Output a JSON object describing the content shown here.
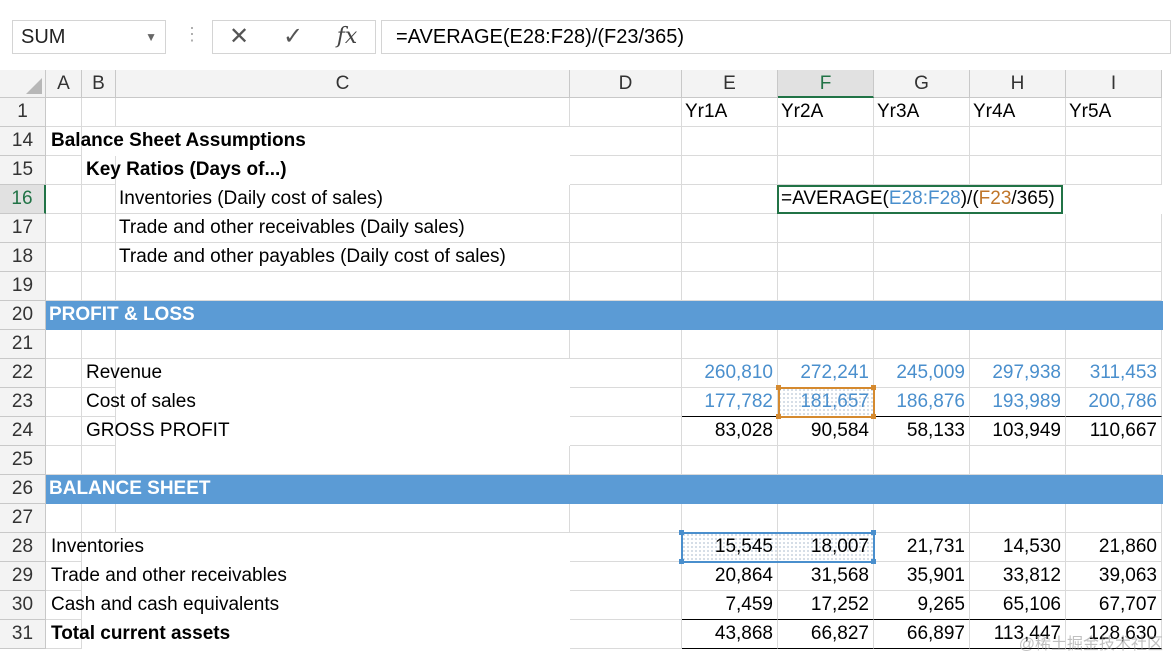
{
  "formula_bar": {
    "name_box": "SUM",
    "cancel_icon": "close-icon",
    "enter_icon": "check-icon",
    "fx_label": "fx",
    "formula": "=AVERAGE(E28:F28)/(F23/365)"
  },
  "columns": [
    "A",
    "B",
    "C",
    "D",
    "E",
    "F",
    "G",
    "H",
    "I"
  ],
  "selected_column": "F",
  "year_headers": [
    "Yr1A",
    "Yr2A",
    "Yr3A",
    "Yr4A",
    "Yr5A"
  ],
  "rows": [
    {
      "num": "1",
      "label": "",
      "values": [
        "Yr1A",
        "Yr2A",
        "Yr3A",
        "Yr4A",
        "Yr5A"
      ]
    },
    {
      "num": "14",
      "label": "Balance Sheet Assumptions"
    },
    {
      "num": "15",
      "label": "Key Ratios (Days of...)"
    },
    {
      "num": "16",
      "label": "Inventories (Daily cost of sales)"
    },
    {
      "num": "17",
      "label": "Trade and other receivables (Daily sales)"
    },
    {
      "num": "18",
      "label": "Trade and other payables (Daily cost of sales)"
    },
    {
      "num": "19",
      "label": ""
    },
    {
      "num": "20",
      "label": "PROFIT & LOSS"
    },
    {
      "num": "21",
      "label": ""
    },
    {
      "num": "22",
      "label": "Revenue",
      "values": [
        "260,810",
        "272,241",
        "245,009",
        "297,938",
        "311,453"
      ]
    },
    {
      "num": "23",
      "label": "Cost of sales",
      "values": [
        "177,782",
        "181,657",
        "186,876",
        "193,989",
        "200,786"
      ]
    },
    {
      "num": "24",
      "label": "GROSS PROFIT",
      "values": [
        "83,028",
        "90,584",
        "58,133",
        "103,949",
        "110,667"
      ]
    },
    {
      "num": "25",
      "label": ""
    },
    {
      "num": "26",
      "label": "BALANCE SHEET"
    },
    {
      "num": "27",
      "label": ""
    },
    {
      "num": "28",
      "label": "Inventories",
      "values": [
        "15,545",
        "18,007",
        "21,731",
        "14,530",
        "21,860"
      ]
    },
    {
      "num": "29",
      "label": "Trade and other receivables",
      "values": [
        "20,864",
        "31,568",
        "35,901",
        "33,812",
        "39,063"
      ]
    },
    {
      "num": "30",
      "label": "Cash and cash equivalents",
      "values": [
        "7,459",
        "17,252",
        "9,265",
        "65,106",
        "67,707"
      ]
    },
    {
      "num": "31",
      "label": "Total current assets",
      "values": [
        "43,868",
        "66,827",
        "66,897",
        "113,447",
        "128,630"
      ]
    }
  ],
  "edit_cell": {
    "prefix": "=AVERAGE(",
    "ref1": "E28:F28",
    "mid": ")/(",
    "ref2": "F23",
    "suffix": "/365)"
  },
  "colors": {
    "band": "#5b9bd5",
    "input_blue": "#4a8fcd",
    "ref_orange": "#c0762a",
    "selection_green": "#217346"
  },
  "watermark": "@稀土掘金技术社区"
}
